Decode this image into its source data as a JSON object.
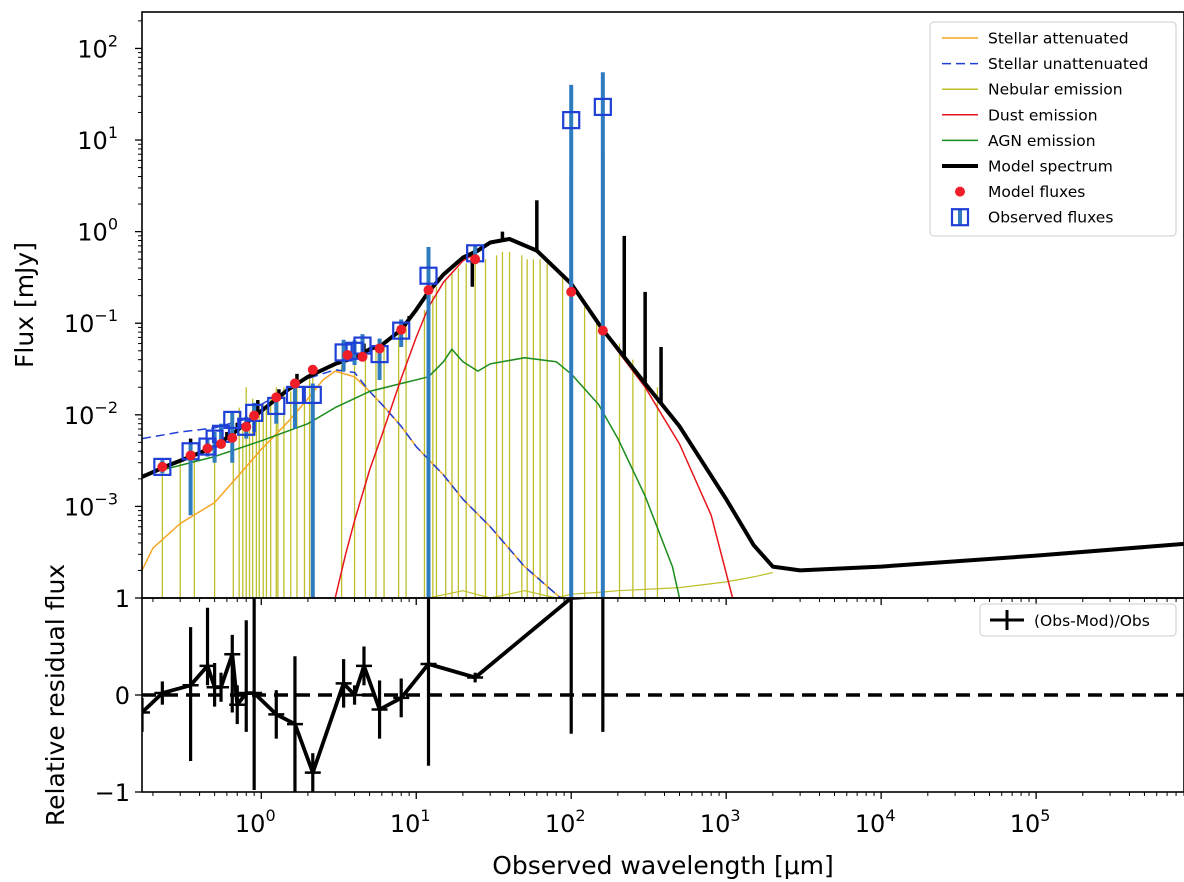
{
  "chart_data": [
    {
      "panel": "sed",
      "type": "line",
      "ylabel": "Flux [mJy]",
      "xscale": "log",
      "yscale": "log",
      "xlim": [
        0.17,
        900000
      ],
      "ylim": [
        0.0001,
        250
      ],
      "y_ticks": [
        {
          "value": 0.001,
          "base": "10",
          "exp": "−3"
        },
        {
          "value": 0.01,
          "base": "10",
          "exp": "−2"
        },
        {
          "value": 0.1,
          "base": "10",
          "exp": "−1"
        },
        {
          "value": 1,
          "base": "10",
          "exp": "0"
        },
        {
          "value": 10,
          "base": "10",
          "exp": "1"
        },
        {
          "value": 100,
          "base": "10",
          "exp": "2"
        }
      ],
      "legend_position": "top-right",
      "legend": [
        {
          "label": "Stellar attenuated",
          "kind": "line",
          "color": "#f5a623"
        },
        {
          "label": "Stellar unattenuated",
          "kind": "dashed",
          "color": "#1f3fd6"
        },
        {
          "label": "Nebular emission",
          "kind": "line",
          "color": "#bfbf2a"
        },
        {
          "label": "Dust emission",
          "kind": "line",
          "color": "#e8151b"
        },
        {
          "label": "AGN emission",
          "kind": "line",
          "color": "#1a8c1a"
        },
        {
          "label": "Model spectrum",
          "kind": "thick",
          "color": "#000000"
        },
        {
          "label": "Model fluxes",
          "kind": "dot",
          "color": "#f01e28"
        },
        {
          "label": "Observed fluxes",
          "kind": "square",
          "color": "#1f3fd6"
        }
      ],
      "series": [
        {
          "key": "model",
          "color": "#000000",
          "width": 4,
          "x": [
            0.17,
            0.25,
            0.35,
            0.5,
            0.7,
            1.0,
            1.5,
            2.0,
            3.0,
            4.0,
            5.0,
            6.0,
            8.0,
            10,
            12,
            15,
            20,
            25,
            30,
            40,
            60,
            100,
            160,
            300,
            500,
            1000,
            1500,
            2000,
            3000,
            10000,
            100000,
            900000
          ],
          "y": [
            0.0021,
            0.0028,
            0.0035,
            0.0045,
            0.0068,
            0.011,
            0.019,
            0.026,
            0.036,
            0.042,
            0.052,
            0.058,
            0.085,
            0.14,
            0.22,
            0.34,
            0.52,
            0.62,
            0.76,
            0.83,
            0.62,
            0.27,
            0.085,
            0.022,
            0.0075,
            0.0012,
            0.00038,
            0.00022,
            0.0002,
            0.00022,
            0.00029,
            0.00039
          ]
        },
        {
          "key": "stellar_unattenuated",
          "color": "#1f3fd6",
          "width": 1.5,
          "dash": "9,5",
          "x": [
            0.17,
            0.3,
            0.5,
            0.8,
            1.0,
            1.5,
            2.0,
            3.0,
            4.0,
            5.0,
            6.0,
            8.0,
            10,
            15,
            20,
            30,
            50,
            80,
            100
          ],
          "y": [
            0.0055,
            0.0065,
            0.0072,
            0.009,
            0.013,
            0.019,
            0.025,
            0.031,
            0.029,
            0.018,
            0.013,
            0.0075,
            0.0045,
            0.0022,
            0.0012,
            0.0006,
            0.00022,
            0.00011,
            8e-05
          ]
        },
        {
          "key": "stellar_attenuated",
          "color": "#f5a623",
          "width": 1.5,
          "x": [
            0.17,
            0.2,
            0.3,
            0.5,
            0.7,
            1.0,
            1.5,
            2.0,
            2.5,
            3.0,
            4.0,
            5.0,
            6.0,
            8.0,
            10,
            15,
            20,
            30,
            50,
            80,
            100
          ],
          "y": [
            0.0002,
            0.00035,
            0.00065,
            0.0011,
            0.0021,
            0.0042,
            0.0085,
            0.015,
            0.024,
            0.03,
            0.026,
            0.018,
            0.013,
            0.0075,
            0.0045,
            0.0022,
            0.0012,
            0.0006,
            0.00022,
            0.00011,
            8e-05
          ]
        },
        {
          "key": "agn",
          "color": "#1a8c1a",
          "width": 1.5,
          "x": [
            0.17,
            0.5,
            1.0,
            2.0,
            3.0,
            5.0,
            8.0,
            12,
            15,
            17,
            20,
            25,
            30,
            50,
            80,
            100,
            150,
            200,
            300,
            450,
            500
          ],
          "y": [
            0.0022,
            0.0035,
            0.0052,
            0.008,
            0.012,
            0.018,
            0.022,
            0.026,
            0.038,
            0.052,
            0.038,
            0.03,
            0.036,
            0.042,
            0.038,
            0.028,
            0.013,
            0.0055,
            0.0013,
            0.00022,
            0.0001
          ]
        },
        {
          "key": "dust",
          "color": "#e8151b",
          "width": 1.5,
          "x": [
            3.0,
            3.5,
            4.0,
            5.0,
            6.0,
            8.0,
            10,
            12,
            15,
            20,
            25,
            30,
            40,
            60,
            100,
            160,
            300,
            500,
            800,
            1100
          ],
          "y": [
            0.0001,
            0.0003,
            0.0007,
            0.0025,
            0.006,
            0.025,
            0.07,
            0.15,
            0.28,
            0.48,
            0.6,
            0.74,
            0.82,
            0.6,
            0.26,
            0.082,
            0.02,
            0.0048,
            0.0008,
            0.0001
          ]
        },
        {
          "key": "nebular_continuum",
          "color": "#bfbf2a",
          "width": 1.2,
          "x": [
            12,
            20,
            30,
            50,
            80,
            100,
            150,
            200,
            500,
            1000,
            1500,
            2000
          ],
          "y": [
            0.0001,
            0.00012,
            0.0001,
            0.00012,
            0.0001,
            0.00011,
            0.000115,
            0.00012,
            0.00013,
            0.00015,
            0.00017,
            0.00019
          ]
        }
      ],
      "nebular_lines": {
        "color": "#bfbf2a",
        "x": [
          0.23,
          0.3,
          0.37,
          0.5,
          0.66,
          0.72,
          0.76,
          0.8,
          0.84,
          0.88,
          0.93,
          0.97,
          1.03,
          1.08,
          1.15,
          1.25,
          1.28,
          1.4,
          1.55,
          1.7,
          1.9,
          2.05,
          2.15,
          3.3,
          4.0,
          4.7,
          5.5,
          6.2,
          7.7,
          8.6,
          11.3,
          12.8,
          13.5,
          15.5,
          17,
          18.7,
          21,
          24,
          28,
          33,
          36,
          40,
          48,
          52,
          57,
          63,
          70,
          88,
          100,
          122,
          146,
          158,
          205,
          250,
          300,
          360
        ],
        "y": [
          0.003,
          0.003,
          0.004,
          0.005,
          0.009,
          0.012,
          0.008,
          0.02,
          0.01,
          0.015,
          0.01,
          0.011,
          0.013,
          0.012,
          0.015,
          0.02,
          0.015,
          0.02,
          0.018,
          0.022,
          0.02,
          0.026,
          0.03,
          0.035,
          0.04,
          0.05,
          0.055,
          0.06,
          0.08,
          0.1,
          0.14,
          0.2,
          0.25,
          0.3,
          0.35,
          0.4,
          0.45,
          0.5,
          0.5,
          0.55,
          0.6,
          0.6,
          0.55,
          0.5,
          0.5,
          0.5,
          0.45,
          0.35,
          0.22,
          0.15,
          0.1,
          0.08,
          0.06,
          0.04,
          0.03,
          0.02
        ]
      },
      "model_fluxes": {
        "x": [
          0.23,
          0.35,
          0.45,
          0.55,
          0.65,
          0.8,
          0.9,
          1.25,
          1.65,
          2.15,
          3.6,
          4.5,
          5.8,
          8.0,
          12,
          24,
          100,
          160
        ],
        "y": [
          0.0027,
          0.0036,
          0.0043,
          0.0048,
          0.0056,
          0.0074,
          0.0098,
          0.0155,
          0.022,
          0.031,
          0.045,
          0.043,
          0.053,
          0.085,
          0.23,
          0.5,
          0.22,
          0.083
        ]
      },
      "observed_fluxes": {
        "x": [
          0.23,
          0.35,
          0.45,
          0.5,
          0.55,
          0.65,
          0.8,
          0.9,
          1.25,
          1.65,
          2.15,
          3.4,
          4.0,
          4.5,
          5.8,
          8.0,
          12,
          24,
          100,
          160
        ],
        "y": [
          0.0027,
          0.004,
          0.0045,
          0.0055,
          0.0062,
          0.0088,
          0.0074,
          0.0105,
          0.0125,
          0.0165,
          0.0165,
          0.048,
          0.05,
          0.057,
          0.046,
          0.083,
          0.33,
          0.58,
          16.5,
          23
        ],
        "err_lo": [
          0.0023,
          0.0008,
          0.0035,
          0.003,
          0.0045,
          0.003,
          0.0055,
          0.0065,
          0.008,
          0.007,
          0.0001,
          0.03,
          0.035,
          0.042,
          0.024,
          0.055,
          0.0001,
          0.45,
          0.0001,
          0.0001
        ],
        "err_hi": [
          0.0032,
          0.0048,
          0.0055,
          0.0065,
          0.008,
          0.0105,
          0.0095,
          0.0135,
          0.016,
          0.022,
          0.022,
          0.066,
          0.065,
          0.076,
          0.068,
          0.11,
          0.68,
          0.7,
          40,
          55
        ]
      },
      "residual_error_bars_top": {
        "x": [
          0.35,
          0.5,
          0.6,
          0.7,
          0.95,
          1.3,
          1.7,
          2.1,
          3.4,
          4.6,
          5.8,
          9,
          23,
          36,
          60,
          100,
          160,
          220,
          300,
          380
        ],
        "y": [
          0.0055,
          0.0058,
          0.0065,
          0.0082,
          0.0145,
          0.019,
          0.028,
          0.034,
          0.048,
          0.06,
          0.065,
          0.12,
          0.25,
          1.0,
          2.2,
          4.5,
          7.0,
          0.9,
          0.22,
          0.055
        ]
      }
    },
    {
      "panel": "residual",
      "type": "line",
      "ylabel": "Relative residual flux",
      "xlabel": "Observed wavelength [μm]",
      "xscale": "log",
      "xlim": [
        0.17,
        900000
      ],
      "ylim": [
        -1,
        1
      ],
      "y_ticks": [
        {
          "value": -1,
          "label": "−1"
        },
        {
          "value": 0,
          "label": "0"
        },
        {
          "value": 1,
          "label": "1"
        }
      ],
      "x_ticks": [
        {
          "value": 1,
          "base": "10",
          "exp": "0"
        },
        {
          "value": 10,
          "base": "10",
          "exp": "1"
        },
        {
          "value": 100,
          "base": "10",
          "exp": "2"
        },
        {
          "value": 1000,
          "base": "10",
          "exp": "3"
        },
        {
          "value": 10000,
          "base": "10",
          "exp": "4"
        },
        {
          "value": 100000,
          "base": "10",
          "exp": "5"
        }
      ],
      "legend_position": "top-right",
      "legend": [
        {
          "label": "(Obs-Mod)/Obs",
          "kind": "errorbar",
          "color": "#000000"
        }
      ],
      "series": [
        {
          "name": "(Obs-Mod)/Obs",
          "color": "#000000",
          "x": [
            0.17,
            0.23,
            0.35,
            0.45,
            0.5,
            0.55,
            0.65,
            0.7,
            0.8,
            0.9,
            1.25,
            1.65,
            2.15,
            3.4,
            4.0,
            4.6,
            5.8,
            8.0,
            12,
            24,
            100,
            160
          ],
          "y": [
            -0.18,
            0.02,
            0.1,
            0.3,
            0.08,
            0.08,
            0.42,
            -0.1,
            0.02,
            0.02,
            -0.2,
            -0.3,
            -0.8,
            0.12,
            0.0,
            0.3,
            -0.15,
            -0.03,
            0.32,
            0.18,
            1.0,
            1.02
          ],
          "err_lo": [
            0.2,
            0.12,
            0.78,
            0.2,
            0.2,
            0.15,
            0.6,
            0.2,
            0.4,
            1.0,
            0.25,
            0.7,
            0.2,
            0.25,
            0.1,
            0.2,
            0.3,
            0.2,
            1.05,
            0.05,
            1.4,
            1.4
          ],
          "err_hi": [
            0.15,
            0.12,
            0.6,
            0.6,
            0.25,
            0.15,
            0.2,
            0.2,
            0.75,
            1.0,
            0.25,
            0.7,
            0.2,
            0.25,
            0.1,
            0.2,
            0.3,
            0.2,
            1.0,
            0.05,
            0.6,
            0.6
          ]
        }
      ]
    }
  ]
}
